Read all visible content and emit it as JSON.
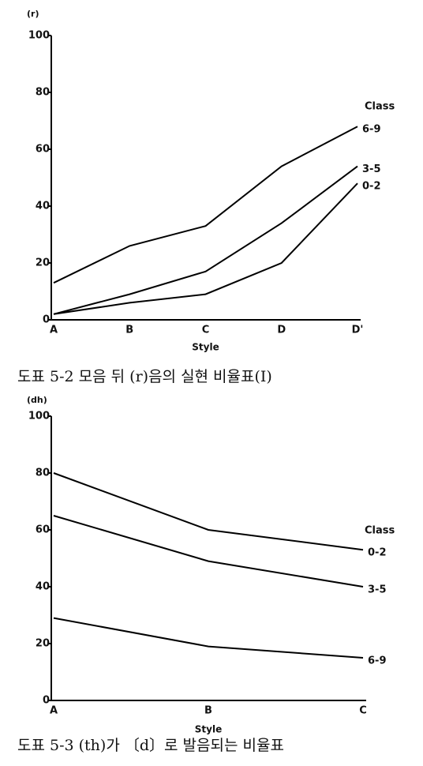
{
  "chart_data": [
    {
      "type": "line",
      "ylabel": "(r)",
      "xlabel": "Style",
      "legend_title": "Class",
      "caption": "도표 5-2  모음 뒤 (r)음의 실현 비율표(Ⅰ)",
      "categories": [
        "A",
        "B",
        "C",
        "D",
        "D'"
      ],
      "ylim": [
        0,
        100
      ],
      "yticks": [
        0,
        20,
        40,
        60,
        80,
        100
      ],
      "series": [
        {
          "name": "6-9",
          "color": "#000000",
          "values": [
            13,
            26,
            33,
            54,
            68
          ]
        },
        {
          "name": "3-5",
          "color": "#000000",
          "values": [
            2,
            9,
            17,
            34,
            54
          ]
        },
        {
          "name": "0-2",
          "color": "#000000",
          "values": [
            2,
            6,
            9,
            20,
            48
          ]
        }
      ]
    },
    {
      "type": "line",
      "ylabel": "(dh)",
      "xlabel": "Style",
      "legend_title": "Class",
      "caption": "도표 5-3 (th)가 〔d〕로 발음되는 비율표",
      "categories": [
        "A",
        "B",
        "C"
      ],
      "ylim": [
        0,
        100
      ],
      "yticks": [
        0,
        20,
        40,
        60,
        80,
        100
      ],
      "series": [
        {
          "name": "0-2",
          "color": "#000000",
          "values": [
            80,
            60,
            53
          ]
        },
        {
          "name": "3-5",
          "color": "#000000",
          "values": [
            65,
            49,
            40
          ]
        },
        {
          "name": "6-9",
          "color": "#000000",
          "values": [
            29,
            19,
            15
          ]
        }
      ]
    }
  ]
}
